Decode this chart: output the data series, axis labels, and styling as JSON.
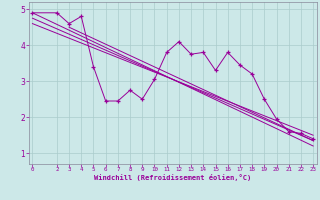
{
  "xlabel": "Windchill (Refroidissement éolien,°C)",
  "x_data": [
    0,
    2,
    3,
    4,
    5,
    6,
    7,
    8,
    9,
    10,
    11,
    12,
    13,
    14,
    15,
    16,
    17,
    18,
    19,
    20,
    21,
    22,
    23
  ],
  "y_scatter": [
    4.9,
    4.9,
    4.6,
    4.8,
    3.4,
    2.45,
    2.45,
    2.75,
    2.5,
    3.05,
    3.8,
    4.1,
    3.75,
    3.8,
    3.3,
    3.8,
    3.45,
    3.2,
    2.5,
    1.95,
    1.6,
    1.55,
    1.4
  ],
  "line1_x": [
    0,
    23
  ],
  "line1_y": [
    4.9,
    1.2
  ],
  "line2_x": [
    0,
    23
  ],
  "line2_y": [
    4.75,
    1.35
  ],
  "line3_x": [
    0,
    23
  ],
  "line3_y": [
    4.6,
    1.5
  ],
  "line4_x": [
    3,
    23
  ],
  "line4_y": [
    4.5,
    1.35
  ],
  "scatter_color": "#990099",
  "line_color": "#990099",
  "bg_color": "#cce8e8",
  "grid_color": "#aacccc",
  "axis_label_color": "#990099",
  "ylim": [
    0.7,
    5.2
  ],
  "xlim": [
    -0.3,
    23.3
  ],
  "yticks": [
    1,
    2,
    3,
    4,
    5
  ],
  "xticks": [
    0,
    2,
    3,
    4,
    5,
    6,
    7,
    8,
    9,
    10,
    11,
    12,
    13,
    14,
    15,
    16,
    17,
    18,
    19,
    20,
    21,
    22,
    23
  ]
}
